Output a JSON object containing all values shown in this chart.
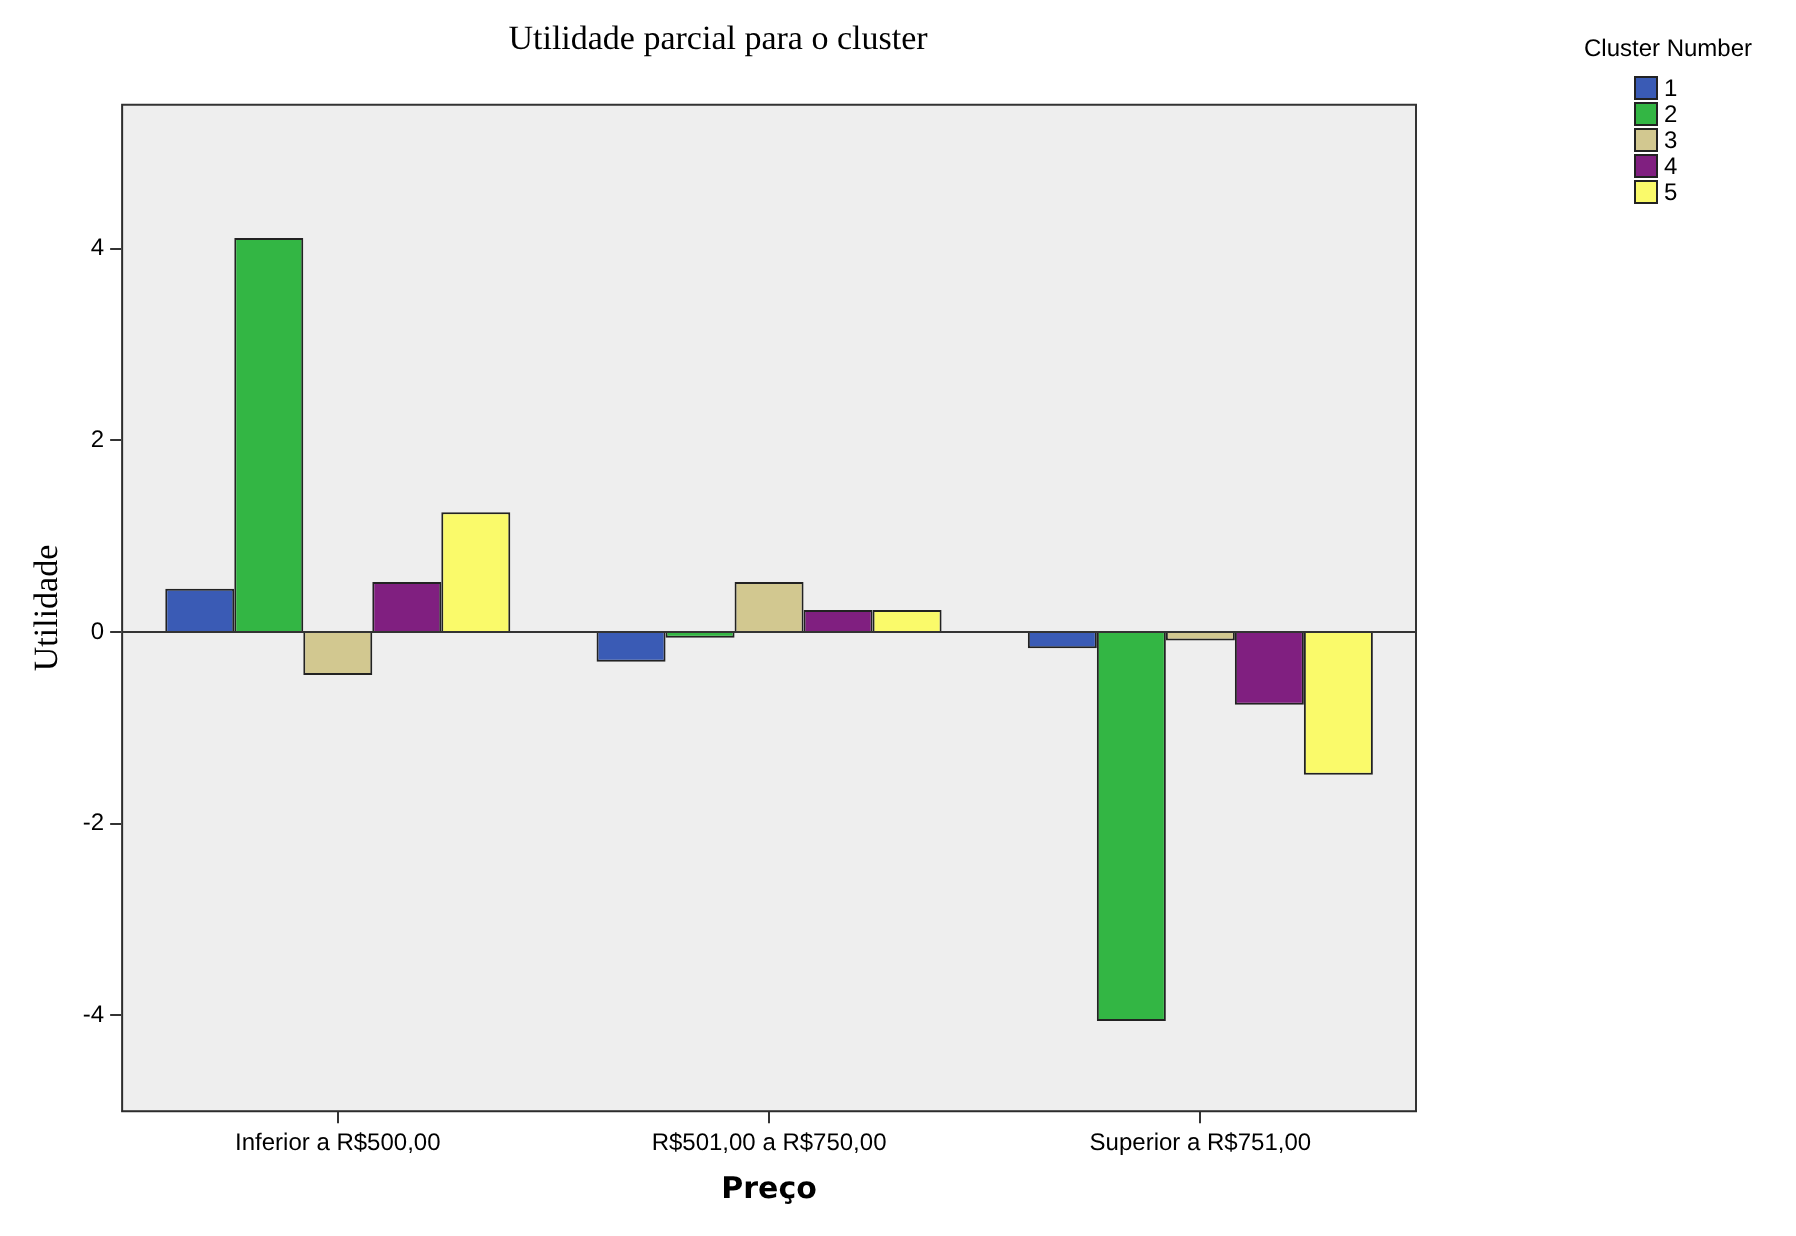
{
  "chart_data": {
    "type": "bar",
    "title": "Utilidade parcial para o cluster",
    "xlabel": "Preço",
    "ylabel": "Utilidade",
    "legend_title": "Cluster Number",
    "categories": [
      "Inferior a R$500,00",
      "R$501,00 a R$750,00",
      "Superior a R$751,00"
    ],
    "series": [
      {
        "name": "1",
        "color": "#3a5bb5",
        "values": [
          0.45,
          -0.31,
          -0.17
        ]
      },
      {
        "name": "2",
        "color": "#33b644",
        "values": [
          4.11,
          -0.06,
          -4.06
        ]
      },
      {
        "name": "3",
        "color": "#d2c890",
        "values": [
          -0.45,
          0.52,
          -0.09
        ]
      },
      {
        "name": "4",
        "color": "#801f80",
        "values": [
          0.52,
          0.23,
          -0.76
        ]
      },
      {
        "name": "5",
        "color": "#fafa6a",
        "values": [
          1.25,
          0.23,
          -1.49
        ]
      }
    ],
    "ref_lines": [
      {
        "axis": "y",
        "value": 0
      }
    ],
    "ylim": [
      -5,
      5.5
    ],
    "yticks": [
      -4,
      -2,
      0,
      2,
      4
    ],
    "grid": false,
    "legend": "top right"
  }
}
